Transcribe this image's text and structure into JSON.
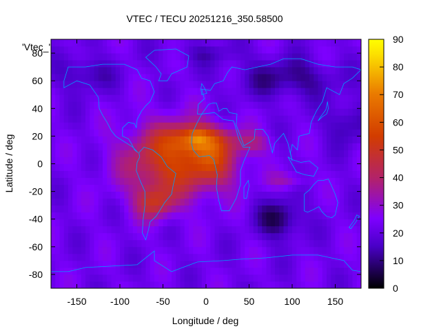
{
  "chart_data": {
    "type": "heatmap",
    "title": "VTEC / TECU 20251216_350.58500",
    "xlabel": "Longitude / deg",
    "ylabel": "Latitude / deg",
    "xlim": [
      -180,
      180
    ],
    "ylim": [
      -90,
      90
    ],
    "x_ticks": [
      -150,
      -100,
      -50,
      0,
      50,
      100,
      150
    ],
    "y_ticks": [
      -80,
      -60,
      -40,
      -20,
      0,
      20,
      40,
      60,
      80
    ],
    "colorbar": {
      "range": [
        0,
        90
      ],
      "ticks": [
        0,
        10,
        20,
        30,
        40,
        50,
        60,
        70,
        80,
        90
      ]
    },
    "legend_label": "'Vtec_'",
    "overlay": "coastlines",
    "field_features": [
      {
        "description": "equatorial anomaly crest maximum",
        "lon": -10,
        "lat": 20,
        "value": 82
      },
      {
        "description": "South America / Atlantic enhancement",
        "lon": -45,
        "lat": -10,
        "value": 55
      },
      {
        "description": "southern crest",
        "lon": -60,
        "lat": -28,
        "value": 48
      },
      {
        "description": "Africa enhancement",
        "lon": 15,
        "lat": 0,
        "value": 45
      },
      {
        "description": "Indian Ocean low",
        "lon": 85,
        "lat": -40,
        "value": 8
      },
      {
        "description": "Siberia low",
        "lon": 90,
        "lat": 62,
        "value": 10
      },
      {
        "description": "polar low north",
        "lon": 0,
        "lat": 85,
        "value": 12
      },
      {
        "description": "background",
        "lon": 150,
        "lat": 0,
        "value": 22
      }
    ],
    "colors": {
      "0": "#000000",
      "15": "#4a00c8",
      "25": "#7e00ff",
      "40": "#b2226b",
      "55": "#d23c00",
      "70": "#ea7a00",
      "85": "#fce000",
      "90": "#ffff00"
    },
    "coastline_color": "#00a0ff"
  }
}
